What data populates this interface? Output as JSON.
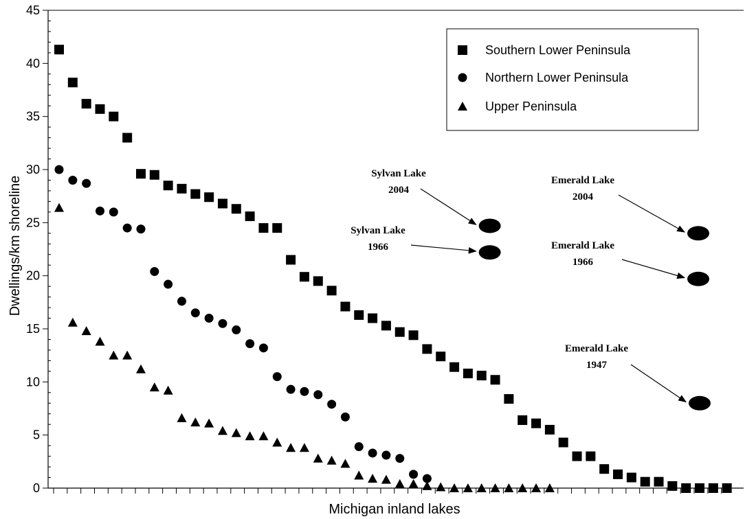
{
  "chart_data": {
    "type": "scatter",
    "xlabel": "Michigan inland lakes",
    "ylabel": "Dwellings/km shoreline",
    "ylim": [
      0,
      45
    ],
    "yticks": [
      0,
      5,
      10,
      15,
      20,
      25,
      30,
      35,
      40,
      45
    ],
    "x_minor_ticks": 50,
    "grid": false,
    "legend_position": "top-right",
    "series": [
      {
        "name": "Southern Lower Peninsula",
        "marker": "square",
        "x": [
          1,
          2,
          3,
          4,
          5,
          6,
          7,
          8,
          9,
          10,
          11,
          12,
          13,
          14,
          15,
          16,
          17,
          18,
          19,
          20,
          21,
          22,
          23,
          24,
          25,
          26,
          27,
          28,
          29,
          30,
          31,
          32,
          33,
          34,
          35,
          36,
          37,
          38,
          39,
          40,
          41,
          42,
          43,
          44,
          45,
          46,
          47,
          48,
          49,
          50
        ],
        "values": [
          41.3,
          38.2,
          36.2,
          35.7,
          35.0,
          33.0,
          29.6,
          29.5,
          28.5,
          28.2,
          27.7,
          27.4,
          26.8,
          26.3,
          25.6,
          24.5,
          24.5,
          21.5,
          19.9,
          19.5,
          18.6,
          17.1,
          16.3,
          16.0,
          15.3,
          14.7,
          14.4,
          13.1,
          12.4,
          11.4,
          10.8,
          10.6,
          10.2,
          8.4,
          6.4,
          6.1,
          5.5,
          4.3,
          3.0,
          3.0,
          1.8,
          1.3,
          1.0,
          0.6,
          0.6,
          0.2,
          0.0,
          0.0,
          0.0,
          0.0
        ]
      },
      {
        "name": "Northern Lower Peninsula",
        "marker": "circle",
        "x": [
          1,
          2,
          3,
          4,
          5,
          6,
          7,
          8,
          9,
          10,
          11,
          12,
          13,
          14,
          15,
          16,
          17,
          18,
          19,
          20,
          21,
          22,
          23,
          24,
          25,
          26,
          27,
          28
        ],
        "values": [
          30.0,
          29.0,
          28.7,
          26.1,
          26.0,
          24.5,
          24.4,
          20.4,
          19.2,
          17.6,
          16.5,
          16.0,
          15.5,
          14.9,
          13.6,
          13.2,
          10.5,
          9.3,
          9.1,
          8.8,
          7.9,
          6.7,
          3.9,
          3.3,
          3.1,
          2.8,
          1.3,
          0.9
        ]
      },
      {
        "name": "Upper Peninsula",
        "marker": "triangle",
        "x": [
          1,
          2,
          3,
          4,
          5,
          6,
          7,
          8,
          9,
          10,
          11,
          12,
          13,
          14,
          15,
          16,
          17,
          18,
          19,
          20,
          21,
          22,
          23,
          24,
          25,
          26,
          27,
          28,
          29,
          30,
          31,
          32,
          33,
          34,
          35,
          36,
          37
        ],
        "values": [
          26.4,
          15.6,
          14.8,
          13.8,
          12.5,
          12.5,
          11.2,
          9.5,
          9.2,
          6.6,
          6.2,
          6.1,
          5.4,
          5.2,
          4.9,
          4.9,
          4.3,
          3.8,
          3.8,
          2.8,
          2.6,
          2.3,
          1.2,
          0.9,
          0.8,
          0.4,
          0.4,
          0.2,
          0.1,
          0.0,
          0.0,
          0.0,
          0.0,
          0.0,
          0.0,
          0.0,
          0.0
        ]
      }
    ],
    "annotations": [
      {
        "label_lines": [
          "Sylvan Lake",
          "2004"
        ],
        "x": 32.6,
        "value": 24.7,
        "marker": "ellipse"
      },
      {
        "label_lines": [
          "Sylvan Lake",
          "1966"
        ],
        "x": 32.6,
        "value": 22.2,
        "marker": "ellipse"
      },
      {
        "label_lines": [
          "Emerald Lake",
          "2004"
        ],
        "x": 47.9,
        "value": 24.0,
        "marker": "ellipse"
      },
      {
        "label_lines": [
          "Emerald Lake",
          "1966"
        ],
        "x": 47.9,
        "value": 19.7,
        "marker": "ellipse"
      },
      {
        "label_lines": [
          "Emerald Lake",
          "1947"
        ],
        "x": 48.0,
        "value": 8.0,
        "marker": "ellipse"
      }
    ]
  }
}
